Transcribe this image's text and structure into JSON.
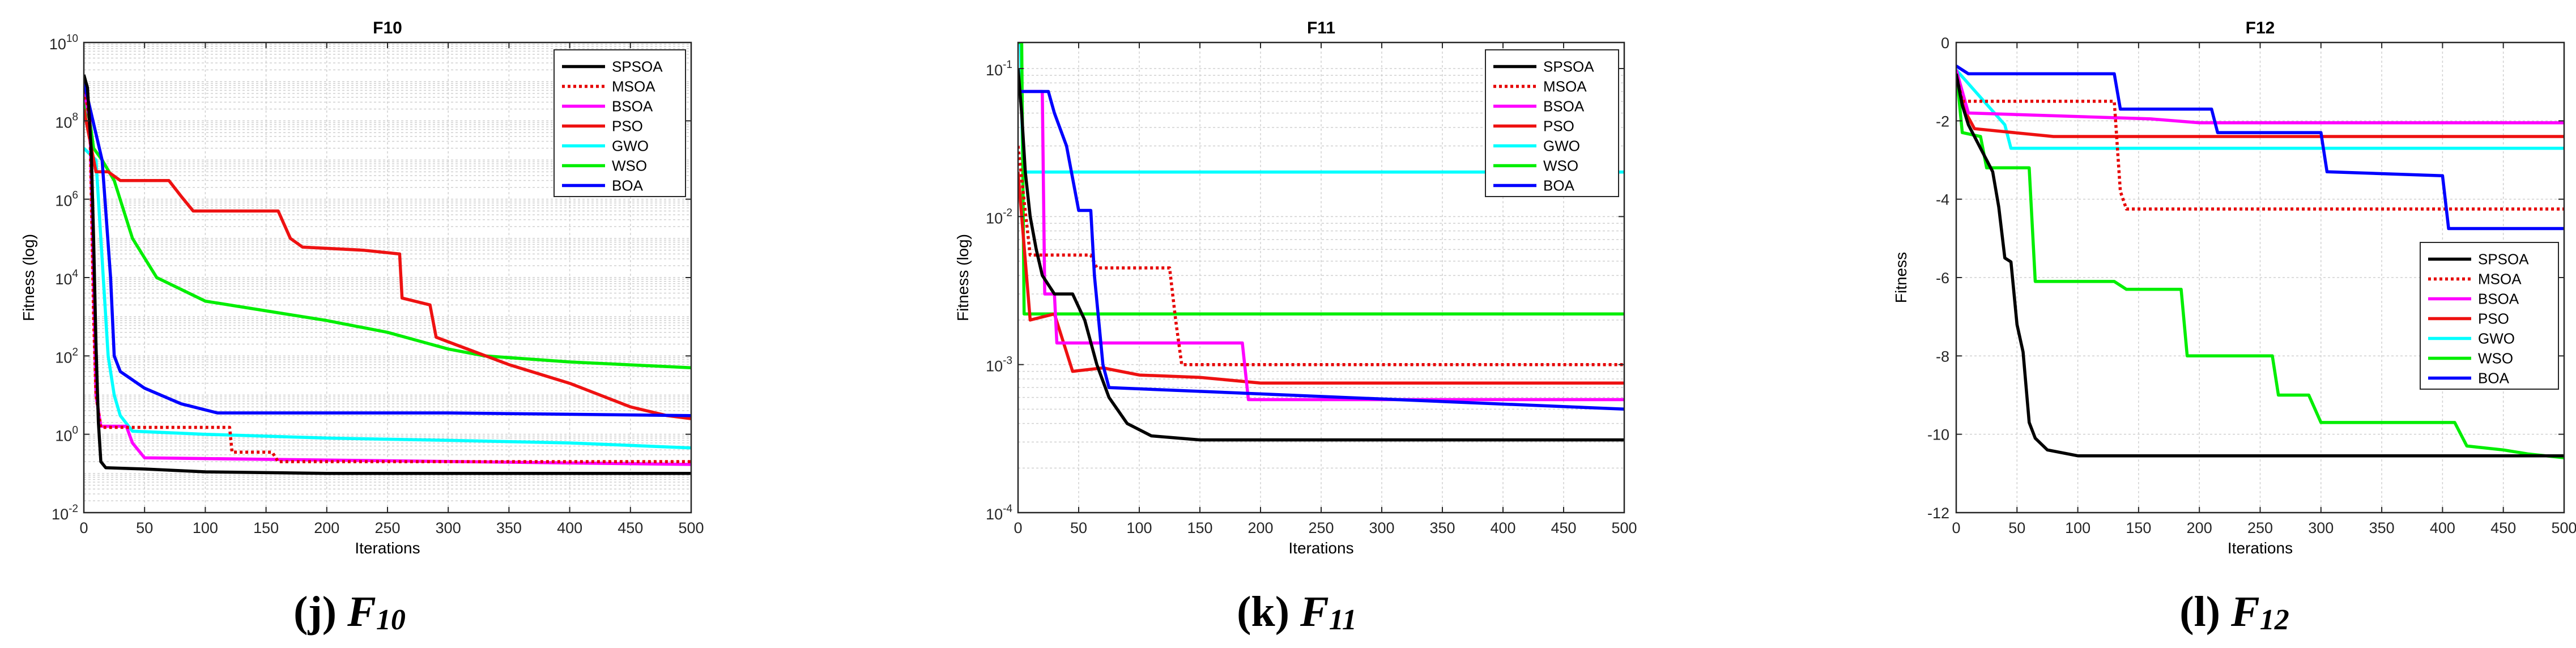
{
  "series_styles": [
    {
      "name": "SPSOA",
      "color": "#000000",
      "dash": "solid"
    },
    {
      "name": "MSOA",
      "color": "#e60000",
      "dash": "dotted"
    },
    {
      "name": "BSOA",
      "color": "#ff00ff",
      "dash": "solid"
    },
    {
      "name": "PSO",
      "color": "#ee1111",
      "dash": "solid"
    },
    {
      "name": "GWO",
      "color": "#00ffff",
      "dash": "solid"
    },
    {
      "name": "WSO",
      "color": "#00ee00",
      "dash": "solid"
    },
    {
      "name": "BOA",
      "color": "#0000ff",
      "dash": "solid"
    }
  ],
  "captions": [
    {
      "letter": "(j)",
      "func": "F",
      "sub": "10"
    },
    {
      "letter": "(k)",
      "func": "F",
      "sub": "11"
    },
    {
      "letter": "(l)",
      "func": "F",
      "sub": "12"
    }
  ],
  "chart_data": [
    {
      "type": "line",
      "title": "F10",
      "xlabel": "Iterations",
      "ylabel": "Fitness (log)",
      "yscale": "log",
      "xlim": [
        0,
        500
      ],
      "ylim": [
        0.01,
        10000000000
      ],
      "xticks": [
        0,
        50,
        100,
        150,
        200,
        250,
        300,
        350,
        400,
        450,
        500
      ],
      "yticks": [
        {
          "base": "10",
          "exp": "-2",
          "v": 0.01
        },
        {
          "base": "10",
          "exp": "0",
          "v": 1
        },
        {
          "base": "10",
          "exp": "2",
          "v": 100
        },
        {
          "base": "10",
          "exp": "4",
          "v": 10000
        },
        {
          "base": "10",
          "exp": "6",
          "v": 1000000
        },
        {
          "base": "10",
          "exp": "8",
          "v": 100000000
        },
        {
          "base": "10",
          "exp": "10",
          "v": 10000000000
        }
      ],
      "legend": "top-right",
      "grid": true,
      "series": [
        {
          "name": "SPSOA",
          "points": [
            [
              0,
              1500000000
            ],
            [
              3,
              700000000
            ],
            [
              6,
              20000000
            ],
            [
              8,
              100000
            ],
            [
              10,
              200
            ],
            [
              12,
              2
            ],
            [
              14,
              0.2
            ],
            [
              18,
              0.14
            ],
            [
              50,
              0.13
            ],
            [
              100,
              0.11
            ],
            [
              200,
              0.1
            ],
            [
              500,
              0.1
            ]
          ]
        },
        {
          "name": "MSOA",
          "points": [
            [
              0,
              800000000
            ],
            [
              5,
              100000000
            ],
            [
              8,
              1000
            ],
            [
              10,
              10
            ],
            [
              14,
              1.5
            ],
            [
              120,
              1.5
            ],
            [
              122,
              0.35
            ],
            [
              155,
              0.35
            ],
            [
              160,
              0.2
            ],
            [
              500,
              0.2
            ]
          ]
        },
        {
          "name": "BSOA",
          "points": [
            [
              0,
              600000000
            ],
            [
              5,
              100000000
            ],
            [
              10,
              10
            ],
            [
              14,
              1.6
            ],
            [
              35,
              1.6
            ],
            [
              40,
              0.6
            ],
            [
              50,
              0.25
            ],
            [
              500,
              0.17
            ]
          ]
        },
        {
          "name": "PSO",
          "points": [
            [
              0,
              200000000
            ],
            [
              10,
              5000000
            ],
            [
              20,
              5000000
            ],
            [
              30,
              3000000
            ],
            [
              70,
              3000000
            ],
            [
              80,
              1200000
            ],
            [
              90,
              500000
            ],
            [
              160,
              500000
            ],
            [
              170,
              100000
            ],
            [
              180,
              60000
            ],
            [
              230,
              50000
            ],
            [
              260,
              40000
            ],
            [
              262,
              3000
            ],
            [
              285,
              2000
            ],
            [
              290,
              300
            ],
            [
              305,
              200
            ],
            [
              350,
              60
            ],
            [
              400,
              20
            ],
            [
              450,
              5
            ],
            [
              480,
              3
            ],
            [
              500,
              2.5
            ]
          ]
        },
        {
          "name": "GWO",
          "points": [
            [
              0,
              20000000
            ],
            [
              10,
              10000000
            ],
            [
              20,
              100
            ],
            [
              25,
              10
            ],
            [
              30,
              3
            ],
            [
              40,
              1.2
            ],
            [
              100,
              1
            ],
            [
              200,
              0.8
            ],
            [
              300,
              0.7
            ],
            [
              400,
              0.6
            ],
            [
              500,
              0.45
            ]
          ]
        },
        {
          "name": "WSO",
          "points": [
            [
              0,
              300000000
            ],
            [
              5,
              100000000
            ],
            [
              8,
              20000000
            ],
            [
              15,
              10000000
            ],
            [
              25,
              3000000
            ],
            [
              40,
              100000
            ],
            [
              60,
              10000
            ],
            [
              100,
              2500
            ],
            [
              200,
              800
            ],
            [
              250,
              400
            ],
            [
              300,
              150
            ],
            [
              330,
              100
            ],
            [
              400,
              70
            ],
            [
              500,
              50
            ]
          ]
        },
        {
          "name": "BOA",
          "points": [
            [
              0,
              1000000000
            ],
            [
              15,
              10000000
            ],
            [
              22,
              10000
            ],
            [
              25,
              100
            ],
            [
              30,
              40
            ],
            [
              50,
              15
            ],
            [
              80,
              6
            ],
            [
              110,
              3.5
            ],
            [
              200,
              3.5
            ],
            [
              300,
              3.5
            ],
            [
              500,
              3
            ]
          ]
        }
      ]
    },
    {
      "type": "line",
      "title": "F11",
      "xlabel": "Iterations",
      "ylabel": "Fitness (log)",
      "yscale": "log",
      "xlim": [
        0,
        500
      ],
      "ylim": [
        0.0001,
        0.15
      ],
      "xticks": [
        0,
        50,
        100,
        150,
        200,
        250,
        300,
        350,
        400,
        450,
        500
      ],
      "yticks": [
        {
          "base": "10",
          "exp": "-4",
          "v": 0.0001
        },
        {
          "base": "10",
          "exp": "-3",
          "v": 0.001
        },
        {
          "base": "10",
          "exp": "-2",
          "v": 0.01
        },
        {
          "base": "10",
          "exp": "-1",
          "v": 0.1
        }
      ],
      "legend": "top-right",
      "grid": true,
      "series": [
        {
          "name": "SPSOA",
          "points": [
            [
              0,
              0.1
            ],
            [
              3,
              0.05
            ],
            [
              6,
              0.02
            ],
            [
              10,
              0.01
            ],
            [
              15,
              0.006
            ],
            [
              20,
              0.004
            ],
            [
              30,
              0.003
            ],
            [
              45,
              0.003
            ],
            [
              55,
              0.002
            ],
            [
              65,
              0.001
            ],
            [
              75,
              0.0006
            ],
            [
              90,
              0.0004
            ],
            [
              110,
              0.00033
            ],
            [
              150,
              0.00031
            ],
            [
              500,
              0.00031
            ]
          ]
        },
        {
          "name": "MSOA",
          "points": [
            [
              0,
              0.03
            ],
            [
              10,
              0.0055
            ],
            [
              60,
              0.0055
            ],
            [
              65,
              0.0045
            ],
            [
              125,
              0.0045
            ],
            [
              130,
              0.002
            ],
            [
              135,
              0.001
            ],
            [
              500,
              0.001
            ]
          ]
        },
        {
          "name": "BSOA",
          "points": [
            [
              0,
              0.07
            ],
            [
              20,
              0.07
            ],
            [
              22,
              0.003
            ],
            [
              30,
              0.003
            ],
            [
              32,
              0.0014
            ],
            [
              185,
              0.0014
            ],
            [
              190,
              0.00058
            ],
            [
              500,
              0.00058
            ]
          ]
        },
        {
          "name": "PSO",
          "points": [
            [
              0,
              0.02
            ],
            [
              10,
              0.002
            ],
            [
              30,
              0.0022
            ],
            [
              45,
              0.0009
            ],
            [
              70,
              0.00095
            ],
            [
              100,
              0.00085
            ],
            [
              150,
              0.00082
            ],
            [
              200,
              0.00075
            ],
            [
              500,
              0.00075
            ]
          ]
        },
        {
          "name": "GWO",
          "points": [
            [
              0,
              0.15
            ],
            [
              2,
              0.15
            ],
            [
              4,
              0.02
            ],
            [
              500,
              0.02
            ]
          ]
        },
        {
          "name": "WSO",
          "points": [
            [
              0,
              0.15
            ],
            [
              3,
              0.15
            ],
            [
              5,
              0.0022
            ],
            [
              500,
              0.0022
            ]
          ]
        },
        {
          "name": "BOA",
          "points": [
            [
              0,
              0.07
            ],
            [
              25,
              0.07
            ],
            [
              30,
              0.05
            ],
            [
              40,
              0.03
            ],
            [
              50,
              0.011
            ],
            [
              60,
              0.011
            ],
            [
              63,
              0.004
            ],
            [
              70,
              0.001
            ],
            [
              75,
              0.0007
            ],
            [
              500,
              0.0005
            ]
          ]
        }
      ]
    },
    {
      "type": "line",
      "title": "F12",
      "xlabel": "Iterations",
      "ylabel": "Fitness",
      "yscale": "linear",
      "xlim": [
        0,
        500
      ],
      "ylim": [
        -12,
        0
      ],
      "xticks": [
        0,
        50,
        100,
        150,
        200,
        250,
        300,
        350,
        400,
        450,
        500
      ],
      "yticks": [
        {
          "label": "0",
          "v": 0
        },
        {
          "label": "-2",
          "v": -2
        },
        {
          "label": "-4",
          "v": -4
        },
        {
          "label": "-6",
          "v": -6
        },
        {
          "label": "-8",
          "v": -8
        },
        {
          "label": "-10",
          "v": -10
        },
        {
          "label": "-12",
          "v": -12
        }
      ],
      "legend": "center-right",
      "grid": true,
      "series": [
        {
          "name": "SPSOA",
          "points": [
            [
              0,
              -0.8
            ],
            [
              5,
              -1.6
            ],
            [
              10,
              -2.1
            ],
            [
              15,
              -2.4
            ],
            [
              20,
              -2.7
            ],
            [
              25,
              -3.0
            ],
            [
              30,
              -3.3
            ],
            [
              35,
              -4.2
            ],
            [
              40,
              -5.5
            ],
            [
              45,
              -5.6
            ],
            [
              50,
              -7.2
            ],
            [
              55,
              -7.9
            ],
            [
              60,
              -9.7
            ],
            [
              65,
              -10.1
            ],
            [
              75,
              -10.4
            ],
            [
              100,
              -10.55
            ],
            [
              500,
              -10.55
            ]
          ]
        },
        {
          "name": "MSOA",
          "points": [
            [
              0,
              -0.8
            ],
            [
              5,
              -1.5
            ],
            [
              130,
              -1.5
            ],
            [
              135,
              -3.8
            ],
            [
              140,
              -4.25
            ],
            [
              500,
              -4.25
            ]
          ]
        },
        {
          "name": "BSOA",
          "points": [
            [
              0,
              -0.7
            ],
            [
              10,
              -1.8
            ],
            [
              160,
              -1.95
            ],
            [
              200,
              -2.05
            ],
            [
              500,
              -2.05
            ]
          ]
        },
        {
          "name": "PSO",
          "points": [
            [
              0,
              -0.9
            ],
            [
              8,
              -1.8
            ],
            [
              15,
              -2.2
            ],
            [
              80,
              -2.4
            ],
            [
              500,
              -2.4
            ]
          ]
        },
        {
          "name": "GWO",
          "points": [
            [
              0,
              -0.7
            ],
            [
              40,
              -2.1
            ],
            [
              45,
              -2.7
            ],
            [
              500,
              -2.7
            ]
          ]
        },
        {
          "name": "WSO",
          "points": [
            [
              0,
              -0.7
            ],
            [
              5,
              -2.3
            ],
            [
              20,
              -2.4
            ],
            [
              25,
              -3.2
            ],
            [
              60,
              -3.2
            ],
            [
              65,
              -6.1
            ],
            [
              130,
              -6.1
            ],
            [
              140,
              -6.3
            ],
            [
              185,
              -6.3
            ],
            [
              190,
              -8.0
            ],
            [
              260,
              -8.0
            ],
            [
              265,
              -9.0
            ],
            [
              290,
              -9.0
            ],
            [
              300,
              -9.7
            ],
            [
              410,
              -9.7
            ],
            [
              420,
              -10.3
            ],
            [
              450,
              -10.4
            ],
            [
              470,
              -10.5
            ],
            [
              500,
              -10.6
            ]
          ]
        },
        {
          "name": "BOA",
          "points": [
            [
              0,
              -0.6
            ],
            [
              10,
              -0.8
            ],
            [
              130,
              -0.8
            ],
            [
              135,
              -1.7
            ],
            [
              210,
              -1.7
            ],
            [
              215,
              -2.3
            ],
            [
              300,
              -2.3
            ],
            [
              305,
              -3.3
            ],
            [
              400,
              -3.4
            ],
            [
              405,
              -4.75
            ],
            [
              500,
              -4.75
            ]
          ]
        }
      ]
    }
  ]
}
